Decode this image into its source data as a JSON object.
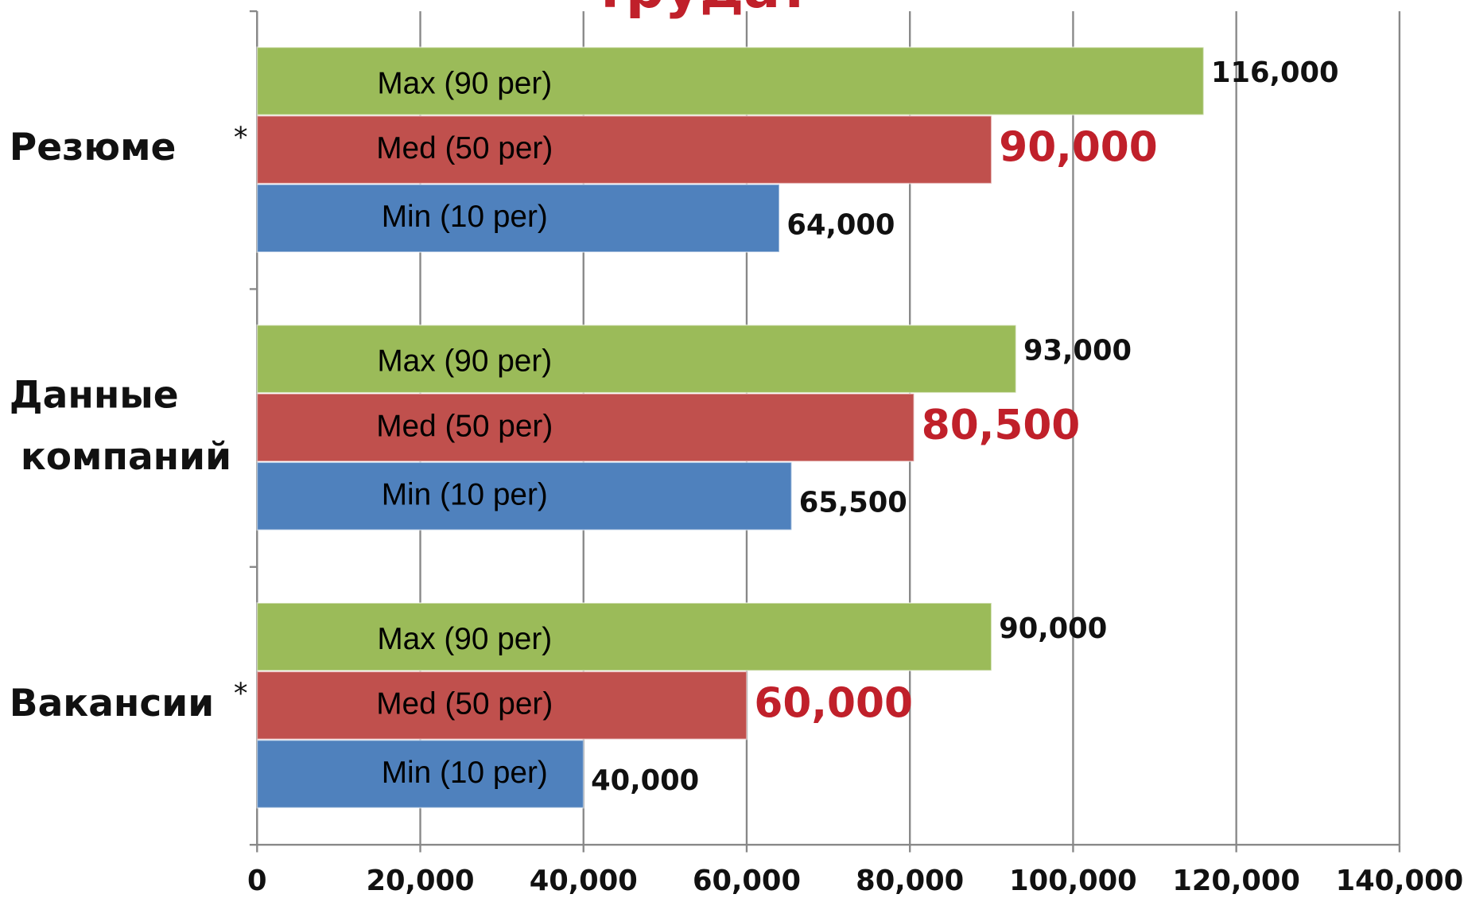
{
  "chart_data": {
    "type": "bar",
    "orientation": "horizontal",
    "title": "труда?",
    "categories": [
      "Резюме",
      "Данные компаний",
      "Вакансии"
    ],
    "annotations": [
      "*",
      "*"
    ],
    "series": [
      {
        "name": "Max (90 per)",
        "color": "#9bbb59",
        "values": [
          116000,
          93000,
          90000
        ],
        "value_labels": [
          "116,000",
          "93,000",
          "90,000"
        ]
      },
      {
        "name": "Med (50 per)",
        "color": "#c0504d",
        "values": [
          90000,
          80500,
          60000
        ],
        "value_labels": [
          "90,000",
          "80,500",
          "60,000"
        ]
      },
      {
        "name": "Min (10 per)",
        "color": "#4f81bd",
        "values": [
          64000,
          65500,
          40000
        ],
        "value_labels": [
          "64,000",
          "65,500",
          "40,000"
        ]
      }
    ],
    "xlim": [
      0,
      140000
    ],
    "xticks": [
      0,
      {
        "value": 20000,
        "label": "20,000"
      },
      {
        "value": 40000,
        "label": "40,000"
      },
      {
        "value": 60000,
        "label": "60,000"
      },
      {
        "value": 80000,
        "label": "80,000"
      },
      {
        "value": 100000,
        "label": "100,000"
      },
      {
        "value": 120000,
        "label": "120,000"
      },
      {
        "value": 140000,
        "label": "140,000"
      }
    ],
    "grid": true
  }
}
